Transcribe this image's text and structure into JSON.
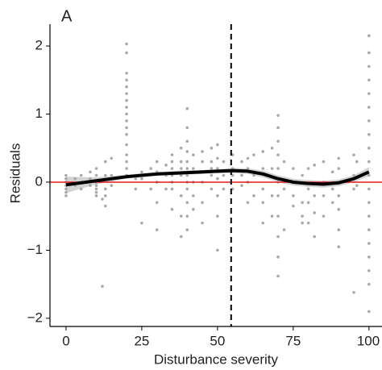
{
  "chart_data": {
    "type": "scatter",
    "panel_label": "A",
    "x_label": "Disturbance severity",
    "y_label": "Residuals",
    "xlim": [
      -5.3,
      104.3
    ],
    "ylim": [
      -2.12,
      2.32
    ],
    "xticks": [
      0,
      25,
      50,
      75,
      100
    ],
    "yticks": [
      {
        "value": -2,
        "label": "−2"
      },
      {
        "value": -1,
        "label": "−1"
      },
      0,
      1,
      2
    ],
    "point_color": "#a9a9a9",
    "x": [
      0,
      0,
      0,
      0,
      0,
      0,
      0,
      3,
      3,
      5,
      5,
      5,
      8,
      8,
      8,
      10,
      10,
      10,
      10,
      10,
      10,
      10,
      12,
      12,
      13,
      13,
      13,
      13,
      13,
      15,
      15,
      15,
      20,
      20,
      20,
      20,
      20,
      20,
      20,
      20,
      20,
      20,
      20,
      20,
      20,
      20,
      20,
      20,
      20,
      23,
      23,
      25,
      25,
      25,
      28,
      28,
      30,
      30,
      30,
      30,
      30,
      33,
      33,
      33,
      35,
      35,
      35,
      35,
      35,
      35,
      35,
      38,
      38,
      38,
      38,
      38,
      38,
      38,
      40,
      40,
      40,
      40,
      40,
      40,
      40,
      40,
      40,
      40,
      40,
      40,
      42,
      42,
      42,
      42,
      42,
      45,
      45,
      45,
      45,
      45,
      45,
      48,
      48,
      48,
      48,
      48,
      50,
      50,
      50,
      50,
      50,
      50,
      50,
      52,
      52,
      52,
      55,
      55,
      55,
      55,
      58,
      58,
      58,
      60,
      60,
      60,
      60,
      62,
      62,
      62,
      65,
      65,
      65,
      65,
      65,
      68,
      68,
      68,
      68,
      70,
      70,
      70,
      70,
      70,
      70,
      70,
      70,
      70,
      70,
      70,
      72,
      72,
      72,
      75,
      75,
      75,
      78,
      78,
      78,
      78,
      80,
      80,
      80,
      80,
      82,
      82,
      82,
      82,
      85,
      85,
      85,
      85,
      88,
      88,
      88,
      90,
      90,
      90,
      90,
      90,
      90,
      90,
      95,
      95,
      95,
      95,
      96,
      96,
      100,
      100,
      100,
      100,
      100,
      100,
      100,
      100,
      100,
      100,
      100,
      100,
      100,
      100,
      100,
      100,
      100,
      100,
      100,
      100
    ],
    "y": [
      0.1,
      0.05,
      0,
      -0.05,
      -0.1,
      -0.15,
      -0.2,
      0.05,
      -0.05,
      0.1,
      0,
      -0.1,
      0.15,
      0.05,
      -0.05,
      0.2,
      0.1,
      0,
      -0.05,
      -0.1,
      -0.15,
      -0.2,
      -0.25,
      -1.53,
      0.3,
      0.1,
      -0.1,
      -0.2,
      -0.35,
      0.35,
      0.1,
      -0.05,
      2.03,
      1.9,
      1.6,
      1.5,
      1.4,
      1.3,
      1.2,
      1.1,
      1.0,
      0.9,
      0.8,
      0.7,
      0.55,
      0.4,
      0.3,
      0.2,
      0.1,
      0.05,
      -0.1,
      0.15,
      0.05,
      -0.6,
      0.2,
      -0.1,
      0.3,
      0.15,
      0,
      -0.3,
      -0.7,
      0.25,
      0.1,
      -0.1,
      0.4,
      0.3,
      0.2,
      0.1,
      0,
      -0.1,
      -0.4,
      0.5,
      0.3,
      0.2,
      0.1,
      -0.2,
      -0.5,
      -0.8,
      1.08,
      0.8,
      0.6,
      0.45,
      0.3,
      0.2,
      0.1,
      0,
      -0.1,
      -0.3,
      -0.5,
      -0.7,
      0.4,
      0.2,
      0,
      -0.2,
      -0.4,
      0.45,
      0.3,
      0.15,
      0,
      -0.3,
      -0.6,
      0.5,
      0.3,
      0.2,
      0.1,
      -0.1,
      0.55,
      0.35,
      0.2,
      0.05,
      -0.2,
      -0.5,
      -1.0,
      0.3,
      0.1,
      -0.1,
      0.4,
      0.2,
      0.1,
      -0.1,
      0.3,
      0.1,
      -0.05,
      0.35,
      0.2,
      0,
      -0.3,
      0.4,
      0.1,
      -0.2,
      0.45,
      0.2,
      -0.1,
      -0.3,
      -0.6,
      0.5,
      0.2,
      -0.2,
      -0.5,
      0.98,
      0.8,
      0.6,
      0.4,
      0.2,
      0,
      -0.2,
      -0.5,
      -0.8,
      -1.1,
      -1.38,
      0.3,
      -0.1,
      -0.7,
      0.2,
      -0.2,
      -0.35,
      0.1,
      -0.3,
      -0.5,
      -0.6,
      0.2,
      -0.1,
      -0.3,
      -0.6,
      0.25,
      -0.2,
      -0.45,
      -0.8,
      0.3,
      0,
      -0.2,
      -0.5,
      0.15,
      -0.1,
      -0.3,
      0.35,
      0.2,
      0,
      -0.2,
      -0.4,
      -0.7,
      -0.95,
      0.4,
      0.1,
      -0.1,
      -1.62,
      0.3,
      -0.05,
      2.15,
      1.9,
      1.7,
      1.5,
      1.3,
      1.1,
      0.9,
      0.7,
      0.5,
      0.3,
      0.1,
      -0.1,
      -0.3,
      -0.5,
      -0.7,
      -0.9,
      -1.1,
      -1.3,
      -1.5,
      -1.9
    ],
    "smooth": {
      "color": "#000000",
      "band_color": "#c8c8c8",
      "x": [
        0,
        10,
        20,
        30,
        40,
        50,
        55,
        60,
        65,
        70,
        75,
        80,
        85,
        90,
        95,
        100
      ],
      "y": [
        -0.04,
        0.02,
        0.08,
        0.12,
        0.14,
        0.16,
        0.17,
        0.16,
        0.12,
        0.05,
        0,
        -0.02,
        -0.03,
        -0.01,
        0.05,
        0.15
      ],
      "lower": [
        -0.16,
        -0.03,
        0.05,
        0.09,
        0.11,
        0.13,
        0.13,
        0.12,
        0.07,
        0,
        -0.05,
        -0.07,
        -0.08,
        -0.06,
        0,
        0.09
      ],
      "upper": [
        0.08,
        0.07,
        0.11,
        0.15,
        0.17,
        0.19,
        0.21,
        0.2,
        0.17,
        0.1,
        0.05,
        0.03,
        0.02,
        0.04,
        0.1,
        0.22
      ]
    },
    "hline": {
      "value": 0,
      "color": "#e31a1c"
    },
    "vline": {
      "value": 54.5,
      "color": "#000000"
    }
  }
}
